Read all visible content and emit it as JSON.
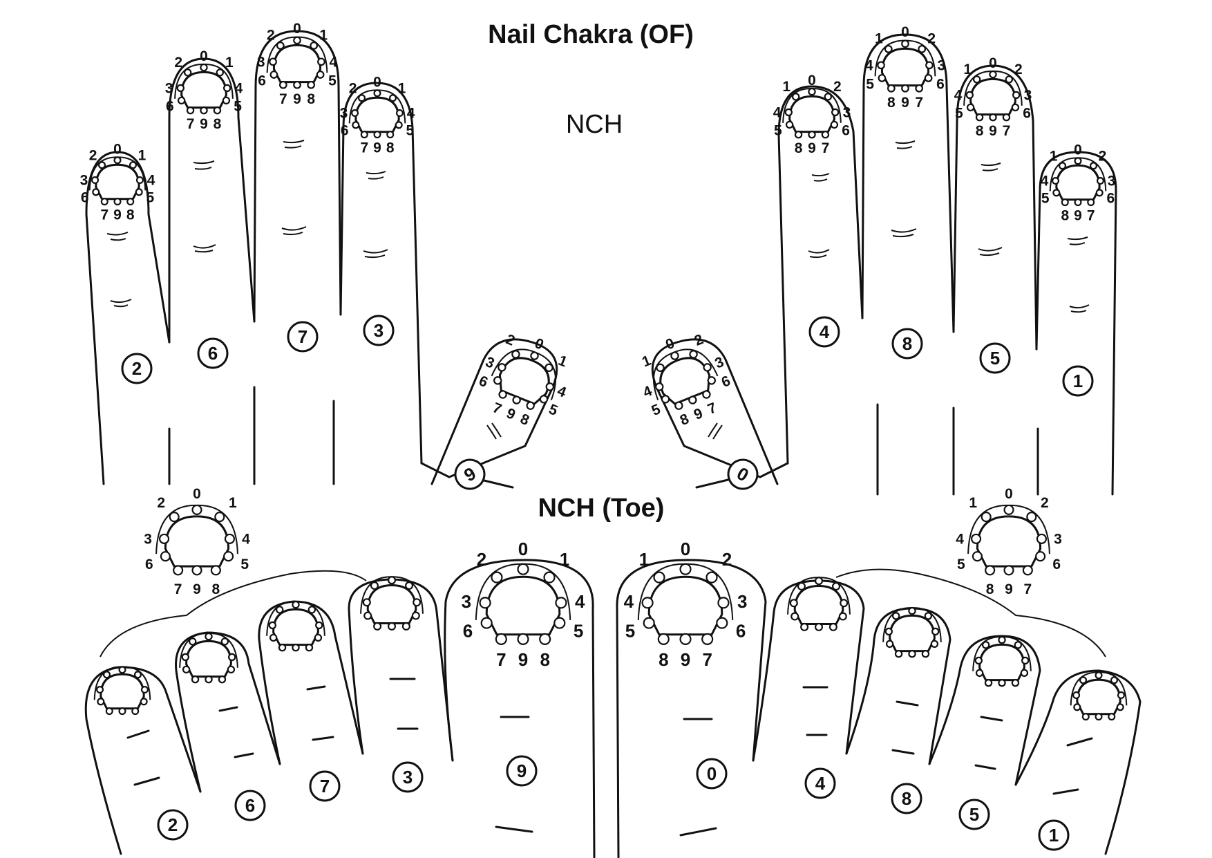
{
  "header": {
    "title": "Nail Chakra (OF)",
    "hand_label": "NCH",
    "toe_label": "NCH (Toe)"
  },
  "hand_fingers": [
    "2",
    "6",
    "7",
    "3",
    "9",
    "0",
    "4",
    "8",
    "5",
    "1"
  ],
  "toe_digits": [
    "2",
    "6",
    "7",
    "3",
    "9",
    "0",
    "4",
    "8",
    "5",
    "1"
  ],
  "nail_point_labels": [
    "0",
    "1",
    "2",
    "3",
    "4",
    "5",
    "6",
    "7",
    "8",
    "9"
  ],
  "colors": {
    "ink": "#111111",
    "paper": "#ffffff"
  }
}
